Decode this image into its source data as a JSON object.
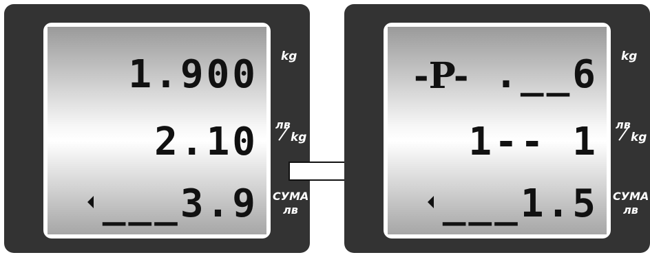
{
  "displays": [
    {
      "id": "left",
      "row1": "1.900",
      "row2": "2.10",
      "row3": "___3.9",
      "indicator": "",
      "units": {
        "row1": "kg",
        "row2_top": "лв",
        "row2_bottom": "kg",
        "row3_top": "СУМА",
        "row3_bottom": "лв"
      }
    },
    {
      "id": "right",
      "row1": ".__6",
      "row2": "1-- 1",
      "row3": "___1.5",
      "indicator": "-P-",
      "units": {
        "row1": "kg",
        "row2_top": "лв",
        "row2_bottom": "kg",
        "row3_top": "СУМА",
        "row3_bottom": "лв"
      }
    }
  ],
  "colors": {
    "panel": "#333333",
    "screen_border": "#ffffff",
    "text": "#111111",
    "unit_text": "#ffffff"
  },
  "icons": {
    "transition": "right-arrow-icon",
    "row3_marker": "left-triangle-icon"
  }
}
